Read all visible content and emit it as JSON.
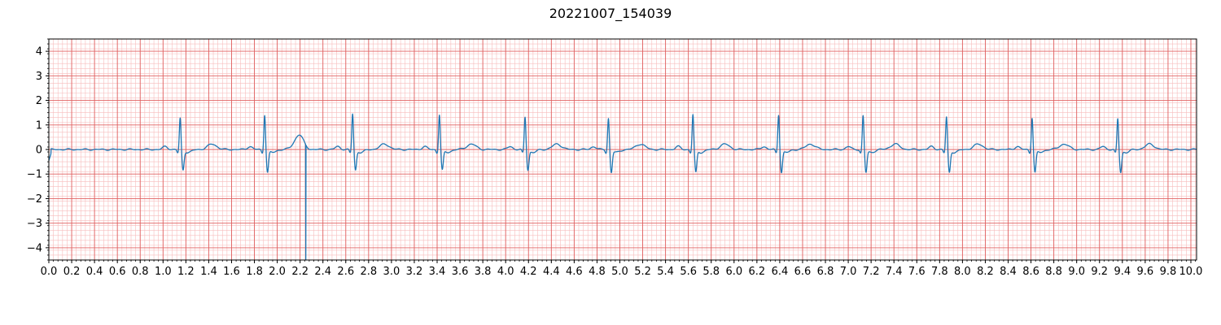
{
  "chart_data": {
    "type": "line",
    "title": "20221007_154039",
    "xlabel": "",
    "ylabel": "",
    "xlim": [
      0.0,
      10.05
    ],
    "ylim": [
      -4.5,
      4.5
    ],
    "grid": {
      "major": true,
      "minor": true,
      "major_color": "#e06060",
      "minor_color": "#f7bcbc",
      "x_major_step": 0.2,
      "x_minor_step": 0.04,
      "y_major_step": 1.0,
      "y_minor_step": 0.2
    },
    "x_ticks": [
      "0.0",
      "0.2",
      "0.4",
      "0.6",
      "0.8",
      "1.0",
      "1.2",
      "1.4",
      "1.6",
      "1.8",
      "2.0",
      "2.2",
      "2.4",
      "2.6",
      "2.8",
      "3.0",
      "3.2",
      "3.4",
      "3.6",
      "3.8",
      "4.0",
      "4.2",
      "4.4",
      "4.6",
      "4.8",
      "5.0",
      "5.2",
      "5.4",
      "5.6",
      "5.8",
      "6.0",
      "6.2",
      "6.4",
      "6.6",
      "6.8",
      "7.0",
      "7.2",
      "7.4",
      "7.6",
      "7.8",
      "8.0",
      "8.2",
      "8.4",
      "8.6",
      "8.8",
      "9.0",
      "9.2",
      "9.4",
      "9.6",
      "9.8",
      "10.0"
    ],
    "y_ticks": [
      "−4",
      "−3",
      "−2",
      "−1",
      "0",
      "1",
      "2",
      "3",
      "4"
    ],
    "series": [
      {
        "color": "#1f77b4",
        "beats": [
          {
            "t": 1.15,
            "r": 1.3,
            "s": -0.8
          },
          {
            "t": 1.89,
            "r": 1.45,
            "s": -0.9
          },
          {
            "t": 2.66,
            "r": 1.48,
            "s": -0.8
          },
          {
            "t": 3.42,
            "r": 1.45,
            "s": -0.8
          },
          {
            "t": 4.17,
            "r": 1.35,
            "s": -0.8
          },
          {
            "t": 4.9,
            "r": 1.3,
            "s": -0.9
          },
          {
            "t": 5.64,
            "r": 1.45,
            "s": -0.9
          },
          {
            "t": 6.39,
            "r": 1.45,
            "s": -0.9
          },
          {
            "t": 7.13,
            "r": 1.4,
            "s": -0.9
          },
          {
            "t": 7.86,
            "r": 1.35,
            "s": -0.9
          },
          {
            "t": 8.61,
            "r": 1.33,
            "s": -0.9
          },
          {
            "t": 9.36,
            "r": 1.28,
            "s": -0.9
          }
        ],
        "artifact": {
          "t": 2.25,
          "pre_peak": 0.42,
          "min": -4.5
        }
      }
    ]
  }
}
